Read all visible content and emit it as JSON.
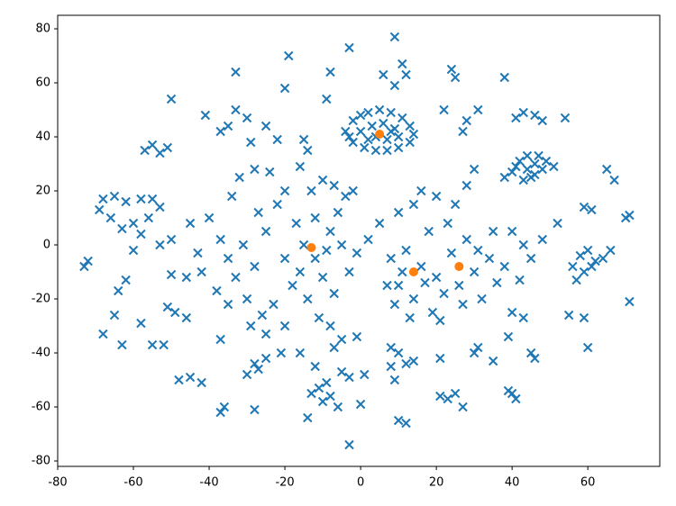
{
  "chart_data": {
    "type": "scatter",
    "xlim": [
      -80,
      79
    ],
    "ylim": [
      -82,
      85
    ],
    "xticks": [
      -80,
      -60,
      -40,
      -20,
      0,
      20,
      40,
      60
    ],
    "yticks": [
      -80,
      -60,
      -40,
      -20,
      0,
      20,
      40,
      60,
      80
    ],
    "grid": false,
    "series": [
      {
        "color": "#1f77b4",
        "marker": "x",
        "x": [
          -3,
          9,
          11,
          12,
          6,
          9,
          -8,
          -19,
          -9,
          -20,
          -33,
          -50,
          24,
          25,
          38,
          22,
          31,
          28,
          27,
          -35,
          -33,
          -30,
          -37,
          -29,
          -25,
          -22,
          -15,
          -14,
          -16,
          -41,
          -55,
          -53,
          -51,
          -57,
          43,
          46,
          41,
          48,
          54,
          -4,
          -2,
          0,
          2,
          5,
          8,
          11,
          13,
          14,
          13,
          10,
          7,
          4,
          1,
          -2,
          -3,
          0,
          3,
          6,
          9,
          10,
          7,
          4,
          2,
          8,
          40,
          42,
          44,
          46,
          48,
          45,
          43,
          41,
          47,
          49,
          44,
          46,
          38,
          51,
          65,
          67,
          -68,
          -65,
          -62,
          -58,
          -55,
          -53,
          -56,
          -60,
          -63,
          -66,
          -69,
          -58,
          -60,
          -53,
          -50,
          -72,
          -73,
          -64,
          -62,
          -51,
          -49,
          -50,
          -46,
          -65,
          -63,
          -58,
          -52,
          -68,
          -46,
          -40,
          -37,
          -35,
          -33,
          -30,
          -28,
          -25,
          -22,
          -20,
          -17,
          -15,
          -12,
          -10,
          -8,
          -6,
          -4,
          -2,
          -18,
          -23,
          -26,
          -14,
          -11,
          -7,
          -3,
          -1,
          2,
          5,
          -42,
          -38,
          -35,
          -32,
          -28,
          -24,
          -13,
          -10,
          -7,
          -43,
          -45,
          -34,
          -27,
          -20,
          -16,
          -12,
          -9,
          -5,
          -31,
          -29,
          -20,
          -8,
          -25,
          8,
          10,
          12,
          14,
          16,
          18,
          20,
          22,
          24,
          26,
          28,
          30,
          32,
          34,
          35,
          11,
          17,
          19,
          13,
          21,
          23,
          10,
          14,
          16,
          20,
          25,
          28,
          30,
          9,
          7,
          27,
          31,
          36,
          38,
          40,
          43,
          42,
          45,
          40,
          43,
          39,
          45,
          46,
          35,
          30,
          31,
          58,
          60,
          62,
          64,
          66,
          59,
          56,
          57,
          61,
          70,
          71,
          59,
          61,
          55,
          59,
          60,
          71,
          52,
          48,
          -45,
          -42,
          -48,
          -37,
          -36,
          -30,
          -28,
          -25,
          -21,
          -27,
          -37,
          -55,
          -28,
          -14,
          -13,
          -11,
          -8,
          -10,
          -6,
          -9,
          -5,
          -7,
          -5,
          -1,
          -3,
          0,
          1,
          8,
          10,
          12,
          14,
          8,
          9,
          10,
          12,
          -3,
          21,
          23,
          25,
          27,
          21,
          39,
          41,
          40,
          -12,
          -16
        ],
        "values": [
          73,
          77,
          67,
          63,
          63,
          59,
          64,
          70,
          54,
          58,
          64,
          54,
          65,
          62,
          62,
          50,
          50,
          46,
          42,
          44,
          50,
          47,
          42,
          38,
          44,
          39,
          39,
          35,
          29,
          48,
          37,
          34,
          36,
          35,
          49,
          48,
          47,
          46,
          47,
          42,
          46,
          48,
          49,
          50,
          49,
          47,
          44,
          41,
          38,
          36,
          35,
          35,
          36,
          38,
          40,
          42,
          44,
          45,
          43,
          40,
          39,
          40,
          39,
          42,
          27,
          31,
          33,
          30,
          28,
          25,
          24,
          29,
          33,
          31,
          28,
          26,
          25,
          29,
          28,
          24,
          17,
          18,
          16,
          17,
          17,
          14,
          10,
          8,
          6,
          10,
          13,
          4,
          -2,
          0,
          2,
          -6,
          -8,
          -17,
          -13,
          -23,
          -25,
          -11,
          -12,
          -26,
          -37,
          -29,
          -37,
          -33,
          -27,
          10,
          2,
          -5,
          -12,
          -20,
          -8,
          5,
          15,
          20,
          8,
          0,
          -5,
          -12,
          5,
          12,
          18,
          20,
          -15,
          -22,
          -26,
          -20,
          -27,
          -18,
          -10,
          -3,
          2,
          8,
          -10,
          -17,
          -22,
          25,
          28,
          27,
          20,
          24,
          22,
          -3,
          8,
          18,
          12,
          -5,
          -10,
          10,
          -2,
          0,
          0,
          -30,
          -30,
          -30,
          -33,
          -5,
          -15,
          -2,
          -20,
          -8,
          5,
          -12,
          -18,
          -3,
          -15,
          2,
          -10,
          -20,
          -5,
          5,
          -10,
          -14,
          -25,
          -27,
          -28,
          8,
          12,
          15,
          20,
          18,
          15,
          22,
          28,
          -22,
          -15,
          -22,
          -2,
          -14,
          -8,
          5,
          0,
          -13,
          -5,
          -25,
          -27,
          -34,
          -40,
          -42,
          -43,
          -40,
          -38,
          -4,
          -2,
          -6,
          -5,
          -2,
          -10,
          -8,
          -13,
          -8,
          10,
          11,
          14,
          13,
          -26,
          -27,
          -38,
          -21,
          8,
          2,
          -49,
          -51,
          -50,
          -62,
          -60,
          -48,
          -44,
          -42,
          -40,
          -46,
          -35,
          -37,
          -61,
          -64,
          -55,
          -53,
          -56,
          -58,
          -60,
          -51,
          -47,
          -38,
          -35,
          -34,
          -49,
          -59,
          -48,
          -45,
          -40,
          -44,
          -43,
          -38,
          -50,
          -65,
          -66,
          -74,
          -56,
          -57,
          -55,
          -60,
          -42,
          -54,
          -57,
          -55,
          -45,
          -40
        ]
      },
      {
        "color": "#ff7f0e",
        "marker": "o",
        "x": [
          5,
          -13,
          14,
          26
        ],
        "values": [
          41,
          -1,
          -10,
          -8
        ]
      }
    ]
  }
}
